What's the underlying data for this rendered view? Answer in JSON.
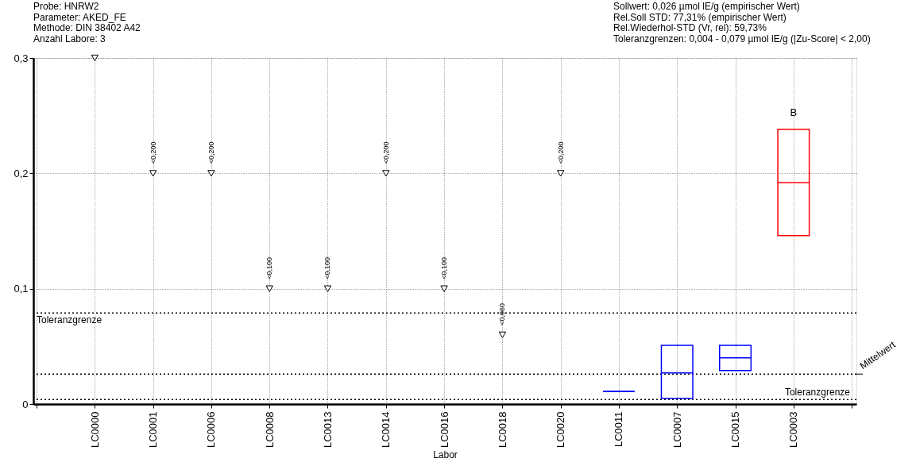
{
  "chart_data": {
    "type": "box",
    "annotations": [
      "Probe: HNRW2",
      "Parameter: AKED_FE",
      "Methode: DIN 38402 A42",
      "Anzahl Labore: 3",
      "Sollwert: 0,026 µmol lE/g (empirischer Wert)",
      "Rel.Soll STD: 77,31% (empirischer Wert)",
      "Rel.Wiederhol-STD (Vr, rel): 59,73%",
      "Toleranzgrenzen: 0,004 - 0,079 µmol lE/g   (|Zu-Score| < 2,00)",
      "B"
    ],
    "xlabel": "Labor",
    "categories": [
      null,
      "LC0000",
      "LC0001",
      "LC0006",
      "LC0008",
      "LC0013",
      "LC0014",
      "LC0016",
      "LC0018",
      "LC0020",
      "LC0011",
      "LC0007",
      "LC0015",
      "LC0003",
      null
    ],
    "series": [
      {
        "type": "scatter",
        "color": "#000000",
        "marker": "triangle",
        "values": [
          null,
          0.3,
          0.2,
          0.2,
          0.1,
          0.1,
          0.2,
          0.1,
          0.06,
          0.2,
          null,
          null,
          null,
          null,
          null
        ],
        "value_labels": [
          null,
          null,
          "<0,200",
          "<0,200",
          "<0,100",
          "<0,100",
          "<0,200",
          "<0,100",
          "<0,060",
          "<0,200",
          null,
          null,
          null,
          null,
          null
        ]
      },
      {
        "colors": [
          null,
          null,
          null,
          null,
          null,
          null,
          null,
          null,
          null,
          null,
          "#0000ff",
          "#0000ff",
          "#0000ff",
          "#ff0000",
          null
        ],
        "boxes": [
          null,
          null,
          null,
          null,
          null,
          null,
          null,
          null,
          null,
          null,
          {
            "low": 0.011,
            "q1": 0.011,
            "median": 0.011,
            "q3": 0.011,
            "high": 0.011
          },
          {
            "low": 0.005,
            "q1": 0.005,
            "median": 0.027,
            "q3": 0.051,
            "high": 0.051
          },
          {
            "low": 0.029,
            "q1": 0.029,
            "median": 0.04,
            "q3": 0.051,
            "high": 0.051
          },
          {
            "low": 0.146,
            "q1": 0.146,
            "median": 0.192,
            "q3": 0.238,
            "high": 0.238
          },
          null
        ]
      }
    ],
    "ylim": [
      0,
      0.3
    ],
    "yticks": [
      0,
      {
        "value": 0.1,
        "label": "0,1"
      },
      {
        "value": 0.2,
        "label": "0,2"
      },
      {
        "value": 0.3,
        "label": "0,3"
      }
    ],
    "ref_lines": [
      {
        "axis": "y",
        "value": 0.079,
        "label": "Toleranzgrenze",
        "color": "#000000",
        "line_style": "dotted"
      },
      {
        "axis": "y",
        "value": 0.026,
        "label": "Mittelwert",
        "color": "#000000",
        "line_style": "dotted"
      },
      {
        "axis": "y",
        "value": 0.004,
        "label": "Toleranzgrenze",
        "color": "#000000",
        "line_style": "dotted"
      }
    ],
    "grid": true
  }
}
